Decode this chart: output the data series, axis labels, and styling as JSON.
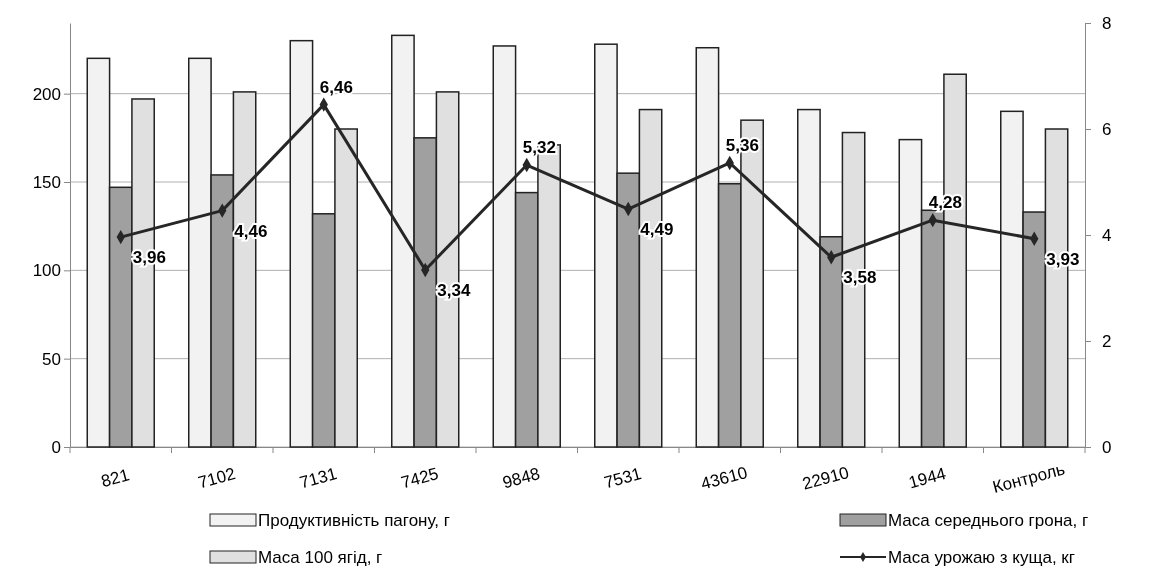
{
  "chart_data": {
    "type": "bar",
    "categories": [
      "821",
      "7102",
      "7131",
      "7425",
      "9848",
      "7531",
      "43610",
      "22910",
      "1944",
      "Контроль"
    ],
    "series": [
      {
        "name": "Продуктивність пагону, г",
        "color": "#f2f2f2",
        "values": [
          220,
          220,
          230,
          233,
          227,
          228,
          226,
          191,
          174,
          190
        ]
      },
      {
        "name": "Маса середнього грона, г",
        "color": "#a0a0a0",
        "values": [
          147,
          154,
          132,
          175,
          144,
          155,
          149,
          119,
          134,
          133
        ]
      },
      {
        "name": "Маса 100 ягід, г",
        "color": "#e0e0e0",
        "values": [
          197,
          201,
          180,
          201,
          171,
          191,
          185,
          178,
          211,
          180
        ]
      },
      {
        "name": "Маса урожаю з куща, кг",
        "type": "line",
        "axis": "y2",
        "color": "#262626",
        "marker": "diamond",
        "values": [
          3.96,
          4.46,
          6.46,
          3.34,
          5.32,
          4.49,
          5.36,
          3.58,
          4.28,
          3.93
        ],
        "value_labels": [
          "3,96",
          "4,46",
          "6,46",
          "3,34",
          "5,32",
          "4,49",
          "5,36",
          "3,58",
          "4,28",
          "3,93"
        ]
      }
    ],
    "ylim": [
      0,
      240
    ],
    "yticks": [
      0,
      50,
      100,
      150,
      200
    ],
    "y2lim": [
      0,
      8
    ],
    "y2ticks": [
      0,
      2,
      4,
      6,
      8
    ],
    "grid": "y",
    "legend": "bottom"
  }
}
